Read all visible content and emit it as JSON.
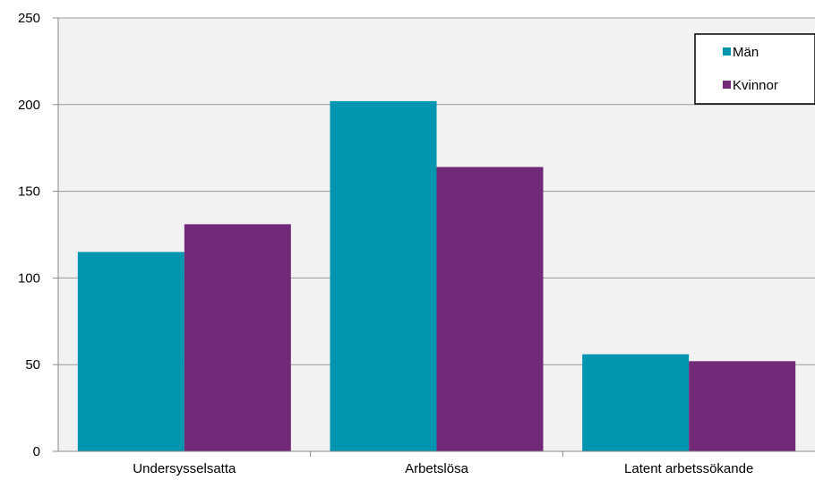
{
  "chart_data": {
    "type": "bar",
    "categories": [
      "Undersysselsatta",
      "Arbetslösa",
      "Latent arbetssökande"
    ],
    "series": [
      {
        "name": "Män",
        "values": [
          115,
          202,
          56
        ],
        "color": "#0096AF"
      },
      {
        "name": "Kvinnor",
        "values": [
          131,
          164,
          52
        ],
        "color": "#722978"
      }
    ],
    "title": "",
    "xlabel": "",
    "ylabel": "",
    "ylim": [
      0,
      250
    ],
    "yticks": [
      0,
      50,
      100,
      150,
      200,
      250
    ],
    "ytick_labels": [
      "0",
      "50",
      "100",
      "150",
      "200",
      "250"
    ],
    "grid": true,
    "legend_position": "top-right",
    "plot_background": "#F2F2F2",
    "gridline_color": "#999999"
  }
}
